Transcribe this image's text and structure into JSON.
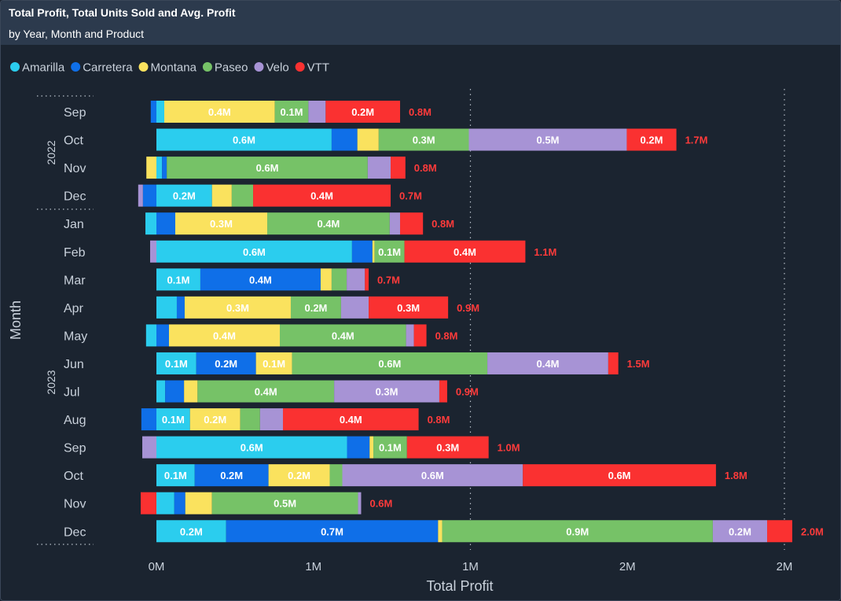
{
  "header": {
    "title": "Total Profit, Total Units Sold and Avg. Profit",
    "subtitle": "by Year, Month and Product"
  },
  "chart_data": {
    "type": "bar",
    "orientation": "horizontal",
    "stacked": true,
    "xlabel": "Total Profit",
    "ylabel": "Month",
    "xlim": [
      -0.1,
      2.05
    ],
    "x_ticks": [
      "0M",
      "1M",
      "1M",
      "2M",
      "2M"
    ],
    "x_tick_values": [
      0,
      0.5,
      1.0,
      1.5,
      2.0
    ],
    "legend_position": "top-left",
    "series": [
      {
        "name": "Amarilla",
        "color": "#2bcdee"
      },
      {
        "name": "Carretera",
        "color": "#0f6fe8"
      },
      {
        "name": "Montana",
        "color": "#fae25e"
      },
      {
        "name": "Paseo",
        "color": "#76c267"
      },
      {
        "name": "Velo",
        "color": "#a793d5"
      },
      {
        "name": "VTT",
        "color": "#fa3131"
      }
    ],
    "groups": [
      {
        "year": "2022",
        "months": [
          "Sep",
          "Oct",
          "Nov",
          "Dec"
        ]
      },
      {
        "year": "2023",
        "months": [
          "Jan",
          "Feb",
          "Mar",
          "Apr",
          "May",
          "Jun",
          "Jul",
          "Aug",
          "Sep",
          "Oct",
          "Nov",
          "Dec"
        ]
      }
    ],
    "rows": [
      {
        "year": "2022",
        "month": "Sep",
        "values": [
          0.025,
          -0.018,
          0.352,
          0.107,
          0.055,
          0.237
        ],
        "total_label": "0.8M"
      },
      {
        "year": "2022",
        "month": "Oct",
        "values": [
          0.558,
          0.082,
          0.068,
          0.287,
          0.503,
          0.158
        ],
        "total_label": "1.7M"
      },
      {
        "year": "2022",
        "month": "Nov",
        "values": [
          0.018,
          0.015,
          -0.032,
          0.64,
          0.073,
          0.047
        ],
        "total_label": "0.8M"
      },
      {
        "year": "2022",
        "month": "Dec",
        "values": [
          0.177,
          -0.043,
          0.063,
          0.068,
          -0.015,
          0.438
        ],
        "total_label": "0.7M"
      },
      {
        "year": "2023",
        "month": "Jan",
        "values": [
          -0.035,
          0.06,
          0.293,
          0.39,
          0.033,
          0.073
        ],
        "total_label": "0.8M"
      },
      {
        "year": "2023",
        "month": "Feb",
        "values": [
          0.623,
          0.065,
          0.007,
          0.095,
          -0.02,
          0.385
        ],
        "total_label": "1.1M"
      },
      {
        "year": "2023",
        "month": "Mar",
        "values": [
          0.14,
          0.383,
          0.035,
          0.048,
          0.058,
          0.012
        ],
        "total_label": "0.7M"
      },
      {
        "year": "2023",
        "month": "Apr",
        "values": [
          0.065,
          0.025,
          0.338,
          0.16,
          0.088,
          0.253
        ],
        "total_label": "0.9M"
      },
      {
        "year": "2023",
        "month": "May",
        "values": [
          -0.033,
          0.04,
          0.353,
          0.402,
          0.025,
          0.04
        ],
        "total_label": "0.8M"
      },
      {
        "year": "2023",
        "month": "Jun",
        "values": [
          0.127,
          0.19,
          0.115,
          0.622,
          0.385,
          0.032
        ],
        "total_label": "1.5M"
      },
      {
        "year": "2023",
        "month": "Jul",
        "values": [
          0.028,
          0.06,
          0.043,
          0.435,
          0.335,
          0.025
        ],
        "total_label": "0.9M"
      },
      {
        "year": "2023",
        "month": "Aug",
        "values": [
          0.107,
          -0.048,
          0.16,
          0.063,
          0.073,
          0.432
        ],
        "total_label": "0.8M"
      },
      {
        "year": "2023",
        "month": "Sep",
        "values": [
          0.607,
          0.072,
          0.012,
          0.107,
          -0.045,
          0.26
        ],
        "total_label": "1.0M"
      },
      {
        "year": "2023",
        "month": "Oct",
        "values": [
          0.122,
          0.235,
          0.195,
          0.04,
          0.575,
          0.615
        ],
        "total_label": "1.8M"
      },
      {
        "year": "2023",
        "month": "Nov",
        "values": [
          0.057,
          0.035,
          0.085,
          0.465,
          0.01,
          -0.05
        ],
        "total_label": "0.6M"
      },
      {
        "year": "2023",
        "month": "Dec",
        "values": [
          0.222,
          0.675,
          0.013,
          0.862,
          0.173,
          0.08
        ],
        "total_label": "2.0M"
      }
    ]
  }
}
